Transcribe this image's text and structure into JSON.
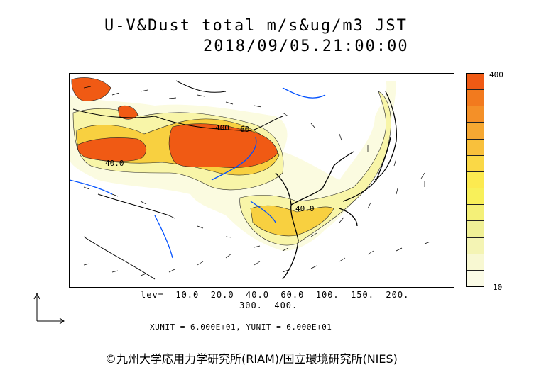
{
  "header": {
    "title": "U-V&Dust total m/s&ug/m3 JST",
    "datetime": "2018/09/05.21:00:00"
  },
  "colorbar": {
    "max_label": "400",
    "min_label": "10",
    "colors": [
      "#f05a14",
      "#f27a1e",
      "#f49028",
      "#f6a832",
      "#f8c03c",
      "#fad846",
      "#fcea50",
      "#f8f05a",
      "#f4f078",
      "#f0f096",
      "#f4f4b4",
      "#f8f8d2",
      "#fbfbe6"
    ]
  },
  "map": {
    "contour_labels": [
      "40.0",
      "60",
      "400",
      "40.0",
      "60"
    ],
    "colors": {
      "ocean": "#ffffff",
      "coast": "#000000",
      "river": "#0050ff",
      "dust_high": "#f05a14",
      "dust_mid": "#f8c03c",
      "dust_low": "#f8f5a8",
      "dust_faint": "#fbfbe0"
    }
  },
  "legend": {
    "levels_line1": "lev=  10.0  20.0  40.0  60.0  100.  150.  200.",
    "levels_line2": "300.  400."
  },
  "units": {
    "text": "XUNIT = 6.000E+01, YUNIT = 6.000E+01"
  },
  "footer": {
    "copyright": "©九州大学応用力学研究所(RIAM)/国立環境研究所(NIES)"
  }
}
